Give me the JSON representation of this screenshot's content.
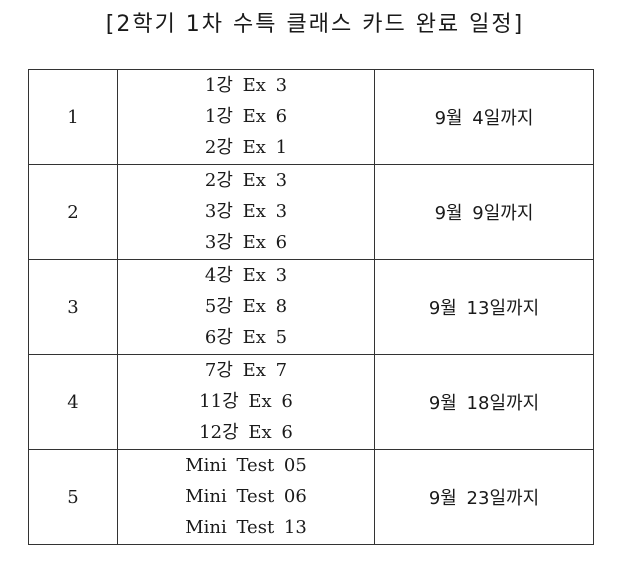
{
  "title": "[2학기 1차 수특 클래스 카드 완료 일정]",
  "rows": [
    {
      "round": "1",
      "items": [
        "1강 Ex 3",
        "1강 Ex 6",
        "2강 Ex 1"
      ],
      "due": "9월 4일까지"
    },
    {
      "round": "2",
      "items": [
        "2강 Ex 3",
        "3강 Ex 3",
        "3강 Ex 6"
      ],
      "due": "9월 9일까지"
    },
    {
      "round": "3",
      "items": [
        "4강 Ex 3",
        "5강 Ex 8",
        "6강 Ex 5"
      ],
      "due": "9월 13일까지"
    },
    {
      "round": "4",
      "items": [
        "7강 Ex 7",
        "11강 Ex 6",
        "12강 Ex 6"
      ],
      "due": "9월 18일까지"
    },
    {
      "round": "5",
      "items": [
        "Mini Test  05",
        "Mini Test  06",
        "Mini Test  13"
      ],
      "due": "9월 23일까지"
    }
  ]
}
